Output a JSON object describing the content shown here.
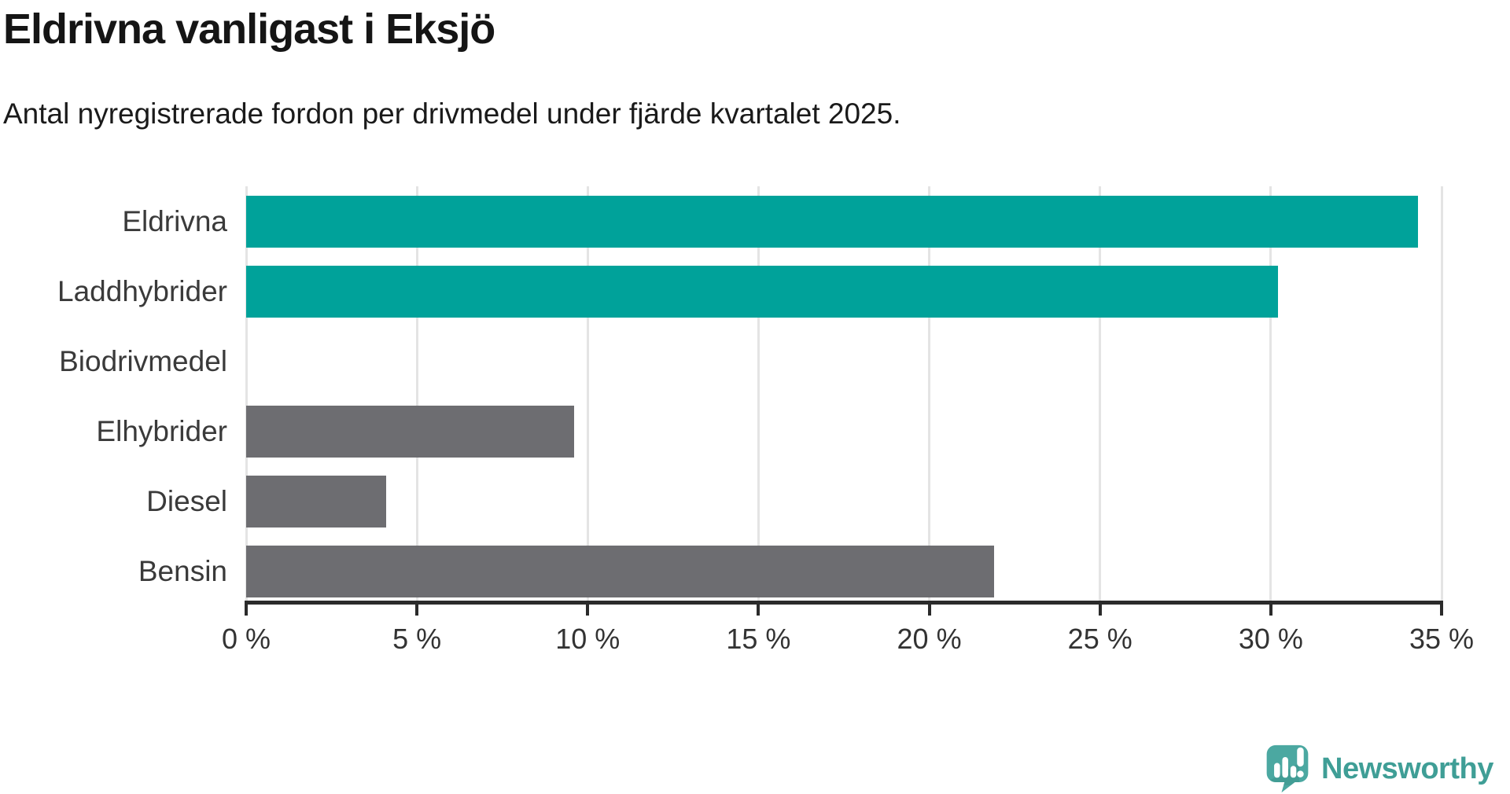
{
  "header": {
    "title": "Eldrivna vanligast i Eksjö",
    "subtitle": "Antal nyregistrerade fordon per drivmedel under fjärde kvartalet 2025."
  },
  "chart_data": {
    "type": "bar",
    "orientation": "horizontal",
    "title": "Eldrivna vanligast i Eksjö",
    "subtitle": "Antal nyregistrerade fordon per drivmedel under fjärde kvartalet 2025.",
    "categories": [
      "Eldrivna",
      "Laddhybrider",
      "Biodrivmedel",
      "Elhybrider",
      "Diesel",
      "Bensin"
    ],
    "values": [
      34.3,
      30.2,
      0,
      9.6,
      4.1,
      21.9
    ],
    "value_unit": "%",
    "xlim": [
      0,
      35
    ],
    "xticks": [
      0,
      5,
      10,
      15,
      20,
      25,
      30,
      35
    ],
    "xtick_labels": [
      "0 %",
      "5 %",
      "10 %",
      "15 %",
      "20 %",
      "25 %",
      "30 %",
      "35 %"
    ],
    "grid": "vertical",
    "legend": "none",
    "bar_colors": [
      "#00a29a",
      "#00a29a",
      "#6d6d71",
      "#6d6d71",
      "#6d6d71",
      "#6d6d71"
    ],
    "highlight_color": "#00a29a",
    "default_bar_color": "#6d6d71"
  },
  "styles": {
    "gridline_color": "#e4e4e4",
    "axis_color": "#2b2b2b",
    "label_color": "#3a3a3a",
    "title_color": "#151515"
  },
  "branding": {
    "name": "Newsworthy",
    "text_color": "#3f9e96",
    "icon_color": "#4ba8a1",
    "icon_shadow_color": "#3d948d",
    "icon_bar_color": "#ffffff"
  }
}
